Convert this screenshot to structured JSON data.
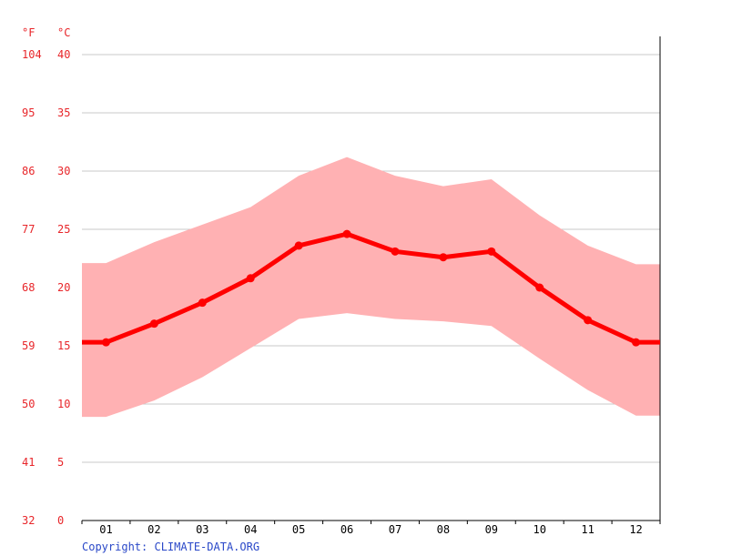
{
  "chart_data": {
    "type": "line",
    "units": {
      "fahrenheit": "°F",
      "celsius": "°C"
    },
    "categories": [
      "01",
      "02",
      "03",
      "04",
      "05",
      "06",
      "07",
      "08",
      "09",
      "10",
      "11",
      "12"
    ],
    "y_ticks_c": [
      "0",
      "5",
      "10",
      "15",
      "20",
      "25",
      "30",
      "35",
      "40"
    ],
    "y_ticks_f": [
      "32",
      "41",
      "50",
      "59",
      "68",
      "77",
      "86",
      "95",
      "104"
    ],
    "ylim": [
      0,
      40
    ],
    "grid": true,
    "series": [
      {
        "values": [
          15.3,
          16.9,
          18.7,
          20.8,
          23.6,
          24.6,
          23.1,
          22.6,
          23.1,
          20.0,
          17.2,
          15.3
        ]
      }
    ],
    "band": {
      "upper": [
        22.1,
        23.9,
        25.4,
        26.9,
        29.6,
        31.2,
        29.6,
        28.7,
        29.3,
        26.2,
        23.6,
        22.0
      ],
      "lower": [
        8.9,
        10.3,
        12.3,
        14.8,
        17.3,
        17.8,
        17.3,
        17.1,
        16.7,
        13.9,
        11.2,
        9.0
      ]
    },
    "colors": {
      "line": "#ff0000",
      "band": "#ffb1b3",
      "grid": "#c8c8c8",
      "tick_text": "#e8262a",
      "copyright": "#2a48c8"
    }
  },
  "copyright": "Copyright: CLIMATE-DATA.ORG"
}
